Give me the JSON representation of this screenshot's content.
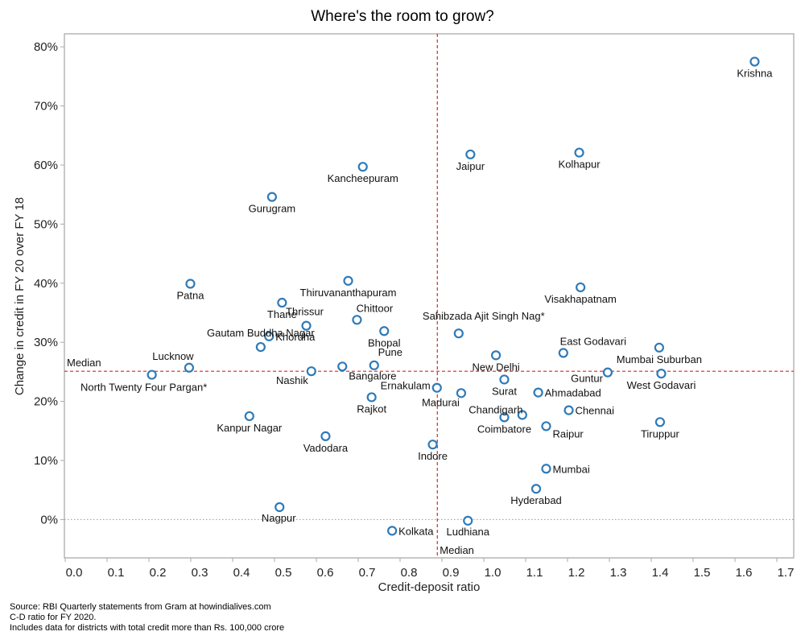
{
  "chart_data": {
    "type": "scatter",
    "title": "Where's the room to grow?",
    "xlabel": "Credit-deposit ratio",
    "ylabel": "Change in credit in FY 20 over FY 18",
    "xlim": [
      0.0,
      1.74
    ],
    "ylim": [
      -6.5,
      82.2
    ],
    "x_ticks": [
      0.0,
      0.1,
      0.2,
      0.3,
      0.4,
      0.5,
      0.6,
      0.7,
      0.8,
      0.9,
      1.0,
      1.1,
      1.2,
      1.3,
      1.4,
      1.5,
      1.6,
      1.7
    ],
    "x_tick_labels": [
      "0.0",
      "0.1",
      "0.2",
      "0.3",
      "0.4",
      "0.5",
      "0.6",
      "0.7",
      "0.8",
      "0.9",
      "1.0",
      "1.1",
      "1.2",
      "1.3",
      "1.4",
      "1.5",
      "1.6",
      "1.7"
    ],
    "y_ticks": [
      0,
      10,
      20,
      30,
      40,
      50,
      60,
      70,
      80
    ],
    "y_tick_labels": [
      "0%",
      "10%",
      "20%",
      "30%",
      "40%",
      "50%",
      "60%",
      "70%",
      "80%"
    ],
    "grid": false,
    "reference_lines": {
      "median_x": {
        "value": 0.889,
        "label": "Median",
        "color": "#d62728"
      },
      "median_y": {
        "value": 25.1,
        "label": "Median",
        "color": "#d62728"
      },
      "zero_y": {
        "value": 0,
        "style": "dotted",
        "color": "#999999"
      }
    },
    "point_color": "#2e7ab8",
    "points": [
      {
        "name": "Krishna",
        "x": 1.647,
        "y": 77.5
      },
      {
        "name": "Kolhapur",
        "x": 1.228,
        "y": 62.1
      },
      {
        "name": "Jaipur",
        "x": 0.968,
        "y": 61.8
      },
      {
        "name": "Kancheepuram",
        "x": 0.711,
        "y": 59.7
      },
      {
        "name": "Gurugram",
        "x": 0.494,
        "y": 54.6
      },
      {
        "name": "Thiruvananthapuram",
        "x": 0.676,
        "y": 40.4
      },
      {
        "name": "Patna",
        "x": 0.299,
        "y": 39.9
      },
      {
        "name": "Visakhapatnam",
        "x": 1.231,
        "y": 39.3
      },
      {
        "name": "Thane",
        "x": 0.518,
        "y": 36.7
      },
      {
        "name": "Chittoor",
        "x": 0.697,
        "y": 33.8
      },
      {
        "name": "Thrissur",
        "x": 0.576,
        "y": 32.8
      },
      {
        "name": "Bhopal",
        "x": 0.762,
        "y": 31.9
      },
      {
        "name": "Sahibzada Ajit Singh Nag*",
        "x": 0.94,
        "y": 31.5
      },
      {
        "name": "Khordha",
        "x": 0.487,
        "y": 31.0
      },
      {
        "name": "Gautam Buddha Nagar",
        "x": 0.467,
        "y": 29.2
      },
      {
        "name": "Mumbai Suburban",
        "x": 1.419,
        "y": 29.1
      },
      {
        "name": "East Godavari",
        "x": 1.19,
        "y": 28.2
      },
      {
        "name": "New Delhi",
        "x": 1.029,
        "y": 27.8
      },
      {
        "name": "Pune",
        "x": 0.738,
        "y": 26.1
      },
      {
        "name": "Bangalore",
        "x": 0.662,
        "y": 25.9
      },
      {
        "name": "Lucknow",
        "x": 0.296,
        "y": 25.7
      },
      {
        "name": "Nashik",
        "x": 0.588,
        "y": 25.1
      },
      {
        "name": "Guntur",
        "x": 1.296,
        "y": 24.9
      },
      {
        "name": "West Godavari",
        "x": 1.424,
        "y": 24.7
      },
      {
        "name": "North Twenty Four Pargan*",
        "x": 0.207,
        "y": 24.5
      },
      {
        "name": "Surat",
        "x": 1.049,
        "y": 23.7
      },
      {
        "name": "Ernakulam",
        "x": 0.888,
        "y": 22.3
      },
      {
        "name": "Ahmadabad",
        "x": 1.13,
        "y": 21.5
      },
      {
        "name": "Madurai",
        "x": 0.946,
        "y": 21.4
      },
      {
        "name": "Rajkot",
        "x": 0.732,
        "y": 20.7
      },
      {
        "name": "Chennai",
        "x": 1.203,
        "y": 18.5
      },
      {
        "name": "Chandigarh",
        "x": 1.092,
        "y": 17.7
      },
      {
        "name": "Kanpur Nagar",
        "x": 0.44,
        "y": 17.5
      },
      {
        "name": "Coimbatore",
        "x": 1.049,
        "y": 17.3
      },
      {
        "name": "Tiruppur",
        "x": 1.421,
        "y": 16.5
      },
      {
        "name": "Raipur",
        "x": 1.149,
        "y": 15.8
      },
      {
        "name": "Vadodara",
        "x": 0.622,
        "y": 14.1
      },
      {
        "name": "Indore",
        "x": 0.878,
        "y": 12.7
      },
      {
        "name": "Mumbai",
        "x": 1.149,
        "y": 8.6
      },
      {
        "name": "Hyderabad",
        "x": 1.125,
        "y": 5.2
      },
      {
        "name": "Nagpur",
        "x": 0.512,
        "y": 2.1
      },
      {
        "name": "Ludhiana",
        "x": 0.962,
        "y": -0.2
      },
      {
        "name": "Kolkata",
        "x": 0.781,
        "y": -1.9
      }
    ]
  },
  "footnotes": [
    "Source: RBI Quarterly statements from Gram at howindialives.com",
    "C-D ratio for FY 2020.",
    "Includes data for districts with total credit more than Rs. 100,000 crore"
  ]
}
